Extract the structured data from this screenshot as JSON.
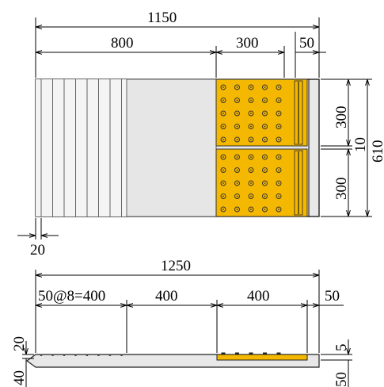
{
  "colors": {
    "tile_yellow": "#f5b800",
    "panel_gray": "#e8e8e8",
    "groove_gray": "#f4f4f4",
    "line": "#000000"
  },
  "plan": {
    "dims": {
      "total_width": "1150",
      "left_width": "800",
      "tile_width": "300",
      "edge_width": "50",
      "tile_height_top": "300",
      "gap": "10",
      "total_height": "610",
      "tile_height_bottom": "300",
      "groove_spacing": "20"
    },
    "groove_count": 8,
    "dot_rows_per_tile": 5,
    "dot_cols_per_tile": 5
  },
  "section": {
    "dims": {
      "total_width": "1250",
      "groove_span": "50@8=400",
      "middle_width": "400",
      "tile_width": "400",
      "edge_width": "50",
      "groove_depth": "20",
      "tile_thickness": "5",
      "slab_thickness_left": "40",
      "slab_thickness_right": "50"
    }
  }
}
